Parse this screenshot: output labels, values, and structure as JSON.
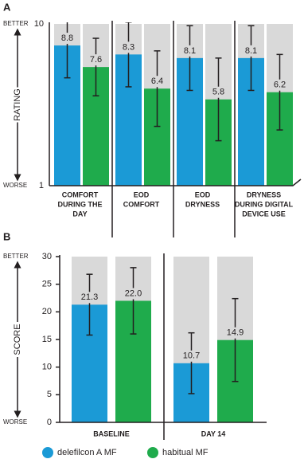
{
  "chart_data": [
    {
      "type": "bar",
      "label": "A",
      "y_label": "RATING",
      "y_top_label": "BETTER",
      "y_bottom_label": "WORSE",
      "categories": [
        [
          "COMFORT",
          "DURING THE",
          "DAY"
        ],
        [
          "EOD",
          "COMFORT"
        ],
        [
          "EOD",
          "DRYNESS"
        ],
        [
          "DRYNESS",
          "DURING DIGITAL",
          "DEVICE USE"
        ]
      ],
      "series": [
        {
          "color": "#1b9ad6",
          "values": [
            8.8,
            8.3,
            8.1,
            8.1
          ],
          "errors": [
            1.8,
            1.8,
            1.8,
            1.8
          ]
        },
        {
          "color": "#1fab4c",
          "values": [
            7.6,
            6.4,
            5.8,
            6.2
          ],
          "errors": [
            1.6,
            2.1,
            2.3,
            2.1
          ]
        }
      ],
      "ylim": [
        1,
        10
      ],
      "yticks": [
        1,
        10
      ]
    },
    {
      "type": "bar",
      "label": "B",
      "y_label": "SCORE",
      "y_top_label": "BETTER",
      "y_bottom_label": "WORSE",
      "categories": [
        [
          "BASELINE"
        ],
        [
          "DAY 14"
        ]
      ],
      "series": [
        {
          "name": "delefilcon A MF",
          "color": "#1b9ad6",
          "values": [
            21.3,
            10.7
          ],
          "errors": [
            5.5,
            5.5
          ]
        },
        {
          "name": "habitual MF",
          "color": "#1fab4c",
          "values": [
            22.0,
            14.9
          ],
          "value_labels": [
            "22.0",
            "14.9"
          ],
          "errors": [
            6.0,
            7.5
          ]
        }
      ],
      "ylim": [
        0,
        30
      ],
      "yticks": [
        0,
        5,
        10,
        15,
        20,
        25,
        30
      ]
    }
  ]
}
